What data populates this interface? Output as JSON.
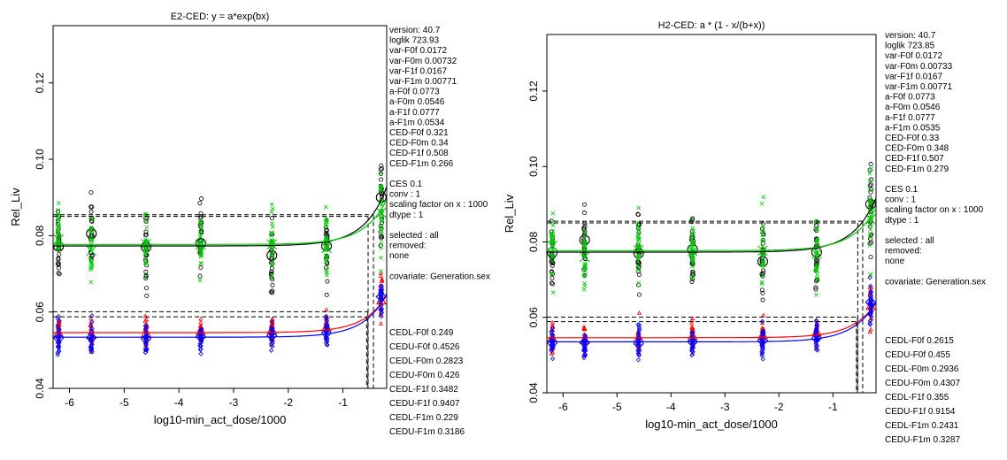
{
  "chart_data": [
    {
      "type": "scatter",
      "title": "E2-CED: y = a*exp(bx)",
      "xlabel": "log10-min_act_dose/1000",
      "ylabel": "Rel_Liv",
      "xlim": [
        -6.3,
        -0.2
      ],
      "ylim": [
        0.04,
        0.135
      ],
      "x_ticks": [
        -6,
        -5,
        -4,
        -3,
        -2,
        -1
      ],
      "x_tick_labels": [
        "-6",
        "-5",
        "-4",
        "-3",
        "-2",
        "-1"
      ],
      "y_ticks": [
        0.04,
        0.06,
        0.08,
        0.1,
        0.12
      ],
      "y_tick_labels": [
        "0.04",
        "0.06",
        "0.08",
        "0.10",
        "0.12"
      ],
      "dose_groups_x": [
        -6.2,
        -5.6,
        -4.6,
        -3.6,
        -2.3,
        -1.3,
        -0.3
      ],
      "series": [
        {
          "key": "F0f",
          "color": "#000000",
          "a": 0.0773,
          "cedl": 0.249,
          "cedu": 0.4526
        },
        {
          "key": "F0m",
          "color": "#ff0000",
          "a": 0.0546,
          "cedl": 0.2823,
          "cedu": 0.426
        },
        {
          "key": "F1f",
          "color": "#00cc00",
          "a": 0.0777,
          "cedl": 0.3482,
          "cedu": 0.9407
        },
        {
          "key": "F1m",
          "color": "#0000ff",
          "a": 0.0534,
          "cedl": 0.229,
          "cedu": 0.3186
        }
      ],
      "group_means": {
        "F0f": [
          0.0772,
          0.0805,
          0.077,
          0.078,
          0.0748,
          0.0773,
          0.09
        ],
        "F0m": [
          0.0545,
          0.054,
          0.0545,
          0.055,
          0.0552,
          0.056,
          0.063
        ],
        "F1f": [
          0.079,
          0.076,
          0.0778,
          0.0776,
          0.0777,
          0.0768,
          0.086
        ],
        "F1m": [
          0.0532,
          0.0533,
          0.053,
          0.0535,
          0.0538,
          0.0545,
          0.064
        ]
      },
      "info_lines": [
        "version: 40.7",
        "loglik   723.93",
        "var-F0f   0.0172",
        "var-F0m   0.00732",
        "var-F1f   0.0167",
        "var-F1m   0.00771",
        "a-F0f   0.0773",
        "a-F0m   0.0546",
        "a-F1f   0.0777",
        "a-F1m   0.0534",
        "CED-F0f   0.321",
        "CED-F0m   0.34",
        "CED-F1f   0.508",
        "CED-F1m   0.266",
        "",
        "CES   0.1",
        "conv :  1",
        "scaling factor on x :  1000",
        "dtype :  1",
        "",
        "selected :  all",
        "removed:",
        "   none",
        "",
        "covariate: Generation.sex"
      ],
      "ci_lines": [
        "CEDL-F0f   0.249",
        "CEDU-F0f   0.4526",
        "CEDL-F0m   0.2823",
        "CEDU-F0m   0.426",
        "CEDL-F1f   0.3482",
        "CEDU-F1f   0.9407",
        "CEDL-F1m   0.229",
        "CEDU-F1m   0.3186"
      ]
    },
    {
      "type": "scatter",
      "title": "H2-CED: a * (1 - x/(b+x))",
      "xlabel": "log10-min_act_dose/1000",
      "ylabel": "Rel_Liv",
      "xlim": [
        -6.3,
        -0.2
      ],
      "ylim": [
        0.04,
        0.135
      ],
      "x_ticks": [
        -6,
        -5,
        -4,
        -3,
        -2,
        -1
      ],
      "x_tick_labels": [
        "-6",
        "-5",
        "-4",
        "-3",
        "-2",
        "-1"
      ],
      "y_ticks": [
        0.04,
        0.06,
        0.08,
        0.1,
        0.12
      ],
      "y_tick_labels": [
        "0.04",
        "0.06",
        "0.08",
        "0.10",
        "0.12"
      ],
      "dose_groups_x": [
        -6.2,
        -5.6,
        -4.6,
        -3.6,
        -2.3,
        -1.3,
        -0.3
      ],
      "series": [
        {
          "key": "F0f",
          "color": "#000000",
          "a": 0.0773,
          "cedl": 0.2615,
          "cedu": 0.455
        },
        {
          "key": "F0m",
          "color": "#ff0000",
          "a": 0.0546,
          "cedl": 0.2936,
          "cedu": 0.4307
        },
        {
          "key": "F1f",
          "color": "#00cc00",
          "a": 0.0777,
          "cedl": 0.355,
          "cedu": 0.9154
        },
        {
          "key": "F1m",
          "color": "#0000ff",
          "a": 0.0535,
          "cedl": 0.2431,
          "cedu": 0.3287
        }
      ],
      "group_means": {
        "F0f": [
          0.0772,
          0.0805,
          0.077,
          0.078,
          0.0748,
          0.0773,
          0.09
        ],
        "F0m": [
          0.0545,
          0.054,
          0.0545,
          0.055,
          0.0552,
          0.056,
          0.063
        ],
        "F1f": [
          0.079,
          0.076,
          0.0778,
          0.0776,
          0.0777,
          0.0768,
          0.086
        ],
        "F1m": [
          0.0532,
          0.0533,
          0.053,
          0.0535,
          0.0538,
          0.0545,
          0.064
        ]
      },
      "info_lines": [
        "version: 40.7",
        "loglik   723.85",
        "var-F0f   0.0172",
        "var-F0m   0.00733",
        "var-F1f   0.0167",
        "var-F1m   0.00771",
        "a-F0f   0.0773",
        "a-F0m   0.0546",
        "a-F1f   0.0777",
        "a-F1m   0.0535",
        "CED-F0f   0.33",
        "CED-F0m   0.348",
        "CED-F1f   0.507",
        "CED-F1m   0.279",
        "",
        "CES   0.1",
        "conv :  1",
        "scaling factor on x :  1000",
        "dtype :  1",
        "",
        "selected :  all",
        "removed:",
        "   none",
        "",
        "covariate: Generation.sex"
      ],
      "ci_lines": [
        "CEDL-F0f   0.2615",
        "CEDU-F0f   0.455",
        "CEDL-F0m   0.2936",
        "CEDU-F0m   0.4307",
        "CEDL-F1f   0.355",
        "CEDU-F1f   0.9154",
        "CEDL-F1m   0.2431",
        "CEDU-F1m   0.3287"
      ]
    }
  ]
}
